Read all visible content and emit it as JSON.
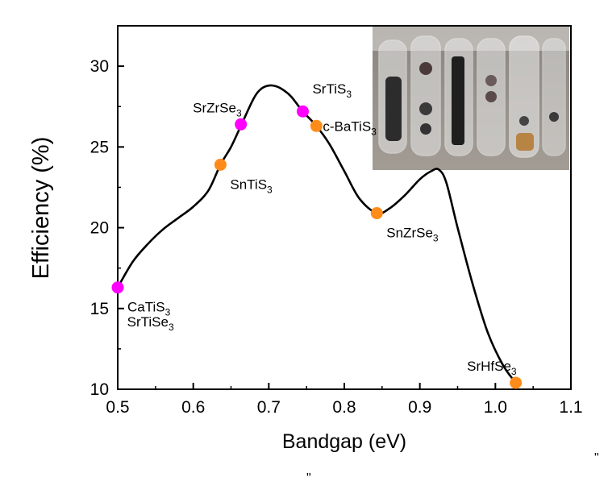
{
  "chart_data": {
    "type": "line",
    "xlabel": "Bandgap (eV)",
    "ylabel": "Efficiency (%)",
    "xlim": [
      0.5,
      1.1
    ],
    "ylim": [
      10,
      32.5
    ],
    "xticks": [
      "0.5",
      "0.6",
      "0.7",
      "0.8",
      "0.9",
      "1.0",
      "1.1"
    ],
    "yticks": [
      "10",
      "15",
      "20",
      "25",
      "30"
    ],
    "grid": false,
    "curve": {
      "x": [
        0.5,
        0.52,
        0.54,
        0.56,
        0.58,
        0.6,
        0.62,
        0.636,
        0.65,
        0.663,
        0.68,
        0.69,
        0.7,
        0.71,
        0.72,
        0.73,
        0.745,
        0.763,
        0.78,
        0.8,
        0.82,
        0.843,
        0.86,
        0.88,
        0.9,
        0.915,
        0.925,
        0.935,
        0.95,
        0.97,
        0.99,
        1.01,
        1.027
      ],
      "y": [
        16.3,
        17.9,
        19.0,
        19.9,
        20.6,
        21.3,
        22.3,
        23.9,
        25.0,
        26.3,
        28.0,
        28.6,
        28.8,
        28.75,
        28.5,
        28.1,
        27.2,
        26.3,
        25.2,
        23.5,
        21.8,
        20.9,
        21.2,
        22.0,
        23.0,
        23.5,
        23.6,
        22.8,
        20.0,
        16.5,
        13.5,
        11.5,
        10.4
      ]
    },
    "points": [
      {
        "x": 0.5,
        "y": 16.3,
        "color": "#ff00ff",
        "label": [
          "CaTiS",
          "3"
        ],
        "anchor": "below-right"
      },
      {
        "x": 0.636,
        "y": 23.9,
        "color": "#ff8c1a",
        "label": [
          "SnTiS",
          "3"
        ],
        "anchor": "below-right"
      },
      {
        "x": 0.663,
        "y": 26.4,
        "color": "#ff00ff",
        "label": [
          "SrZrSe",
          "3"
        ],
        "anchor": "above-left"
      },
      {
        "x": 0.745,
        "y": 27.2,
        "color": "#ff00ff",
        "label": [
          "SrTiS",
          "3"
        ],
        "anchor": "above-right"
      },
      {
        "x": 0.763,
        "y": 26.3,
        "color": "#ff8c1a",
        "label": [
          "c-BaTiS",
          "3"
        ],
        "anchor": "right"
      },
      {
        "x": 0.843,
        "y": 20.9,
        "color": "#ff8c1a",
        "label": [
          "SnZrSe",
          "3"
        ],
        "anchor": "below-right"
      },
      {
        "x": 1.027,
        "y": 10.4,
        "color": "#ff8c1a",
        "label": [
          "SrHfSe",
          "3"
        ],
        "anchor": "above-left"
      }
    ],
    "extra_labels": [
      {
        "text": [
          "SrTiSe",
          "3"
        ],
        "x": 0.506,
        "y": 13.9
      }
    ],
    "inset": "photo of sealed glass ampoules containing sample powders"
  },
  "stray_marks": [
    "\"",
    "\""
  ],
  "colors": {
    "magenta": "#ff00ff",
    "orange": "#ff8c1a",
    "line": "#000000"
  }
}
